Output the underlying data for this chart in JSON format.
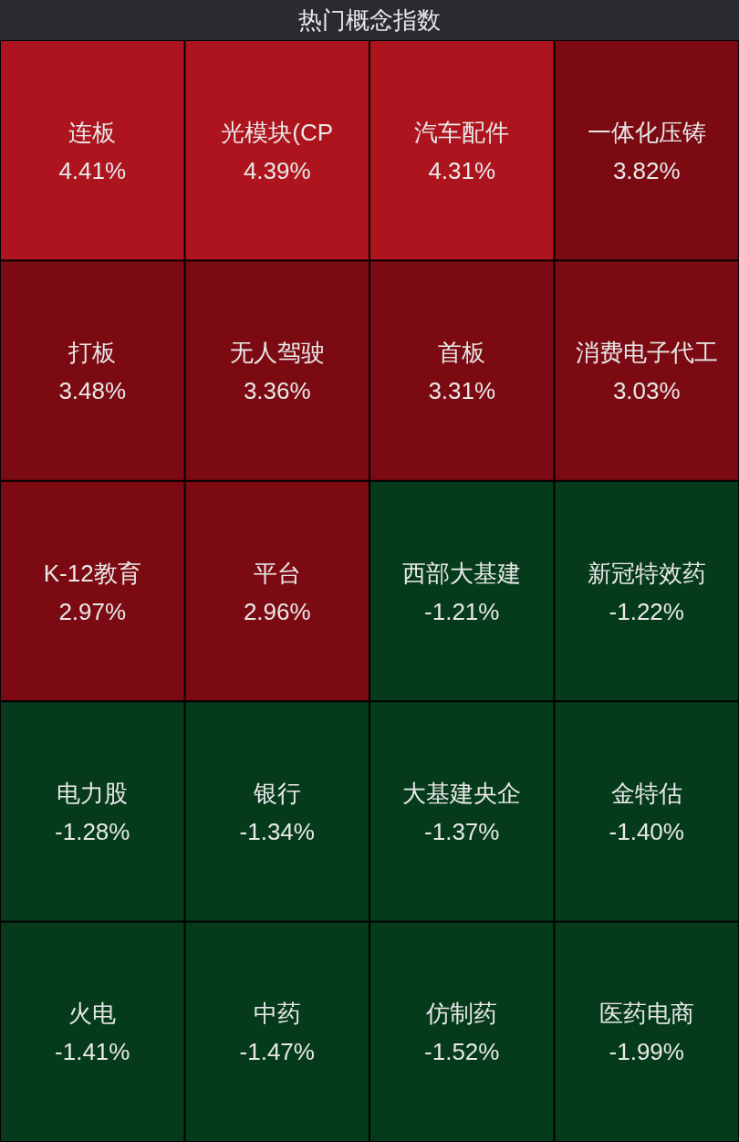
{
  "chart_data": {
    "type": "other",
    "title": "热门概念指数",
    "categories": [
      "连板",
      "光模块(CP",
      "汽车配件",
      "一体化压铸",
      "打板",
      "无人驾驶",
      "首板",
      "消费电子代工",
      "K-12教育",
      "平台",
      "西部大基建",
      "新冠特效药",
      "电力股",
      "银行",
      "大基建央企",
      "金特估",
      "火电",
      "中药",
      "仿制药",
      "医药电商"
    ],
    "values": [
      4.41,
      4.39,
      4.31,
      3.82,
      3.48,
      3.36,
      3.31,
      3.03,
      2.97,
      2.96,
      -1.21,
      -1.22,
      -1.28,
      -1.34,
      -1.37,
      -1.4,
      -1.41,
      -1.47,
      -1.52,
      -1.99
    ],
    "value_labels": [
      "4.41%",
      "4.39%",
      "4.31%",
      "3.82%",
      "3.48%",
      "3.36%",
      "3.31%",
      "3.03%",
      "2.97%",
      "2.96%",
      "-1.21%",
      "-1.22%",
      "-1.28%",
      "-1.34%",
      "-1.37%",
      "-1.40%",
      "-1.41%",
      "-1.47%",
      "-1.52%",
      "-1.99%"
    ],
    "colors": [
      "#ae141e",
      "#ae141e",
      "#ae141e",
      "#7c0a12",
      "#7c0a12",
      "#7c0a12",
      "#7c0a12",
      "#7c0a12",
      "#7c0a12",
      "#7c0a12",
      "#053a1a",
      "#053a1a",
      "#053a1a",
      "#053a1a",
      "#053a1a",
      "#053a1a",
      "#053a1a",
      "#053a1a",
      "#053a1a",
      "#053a1a"
    ]
  }
}
